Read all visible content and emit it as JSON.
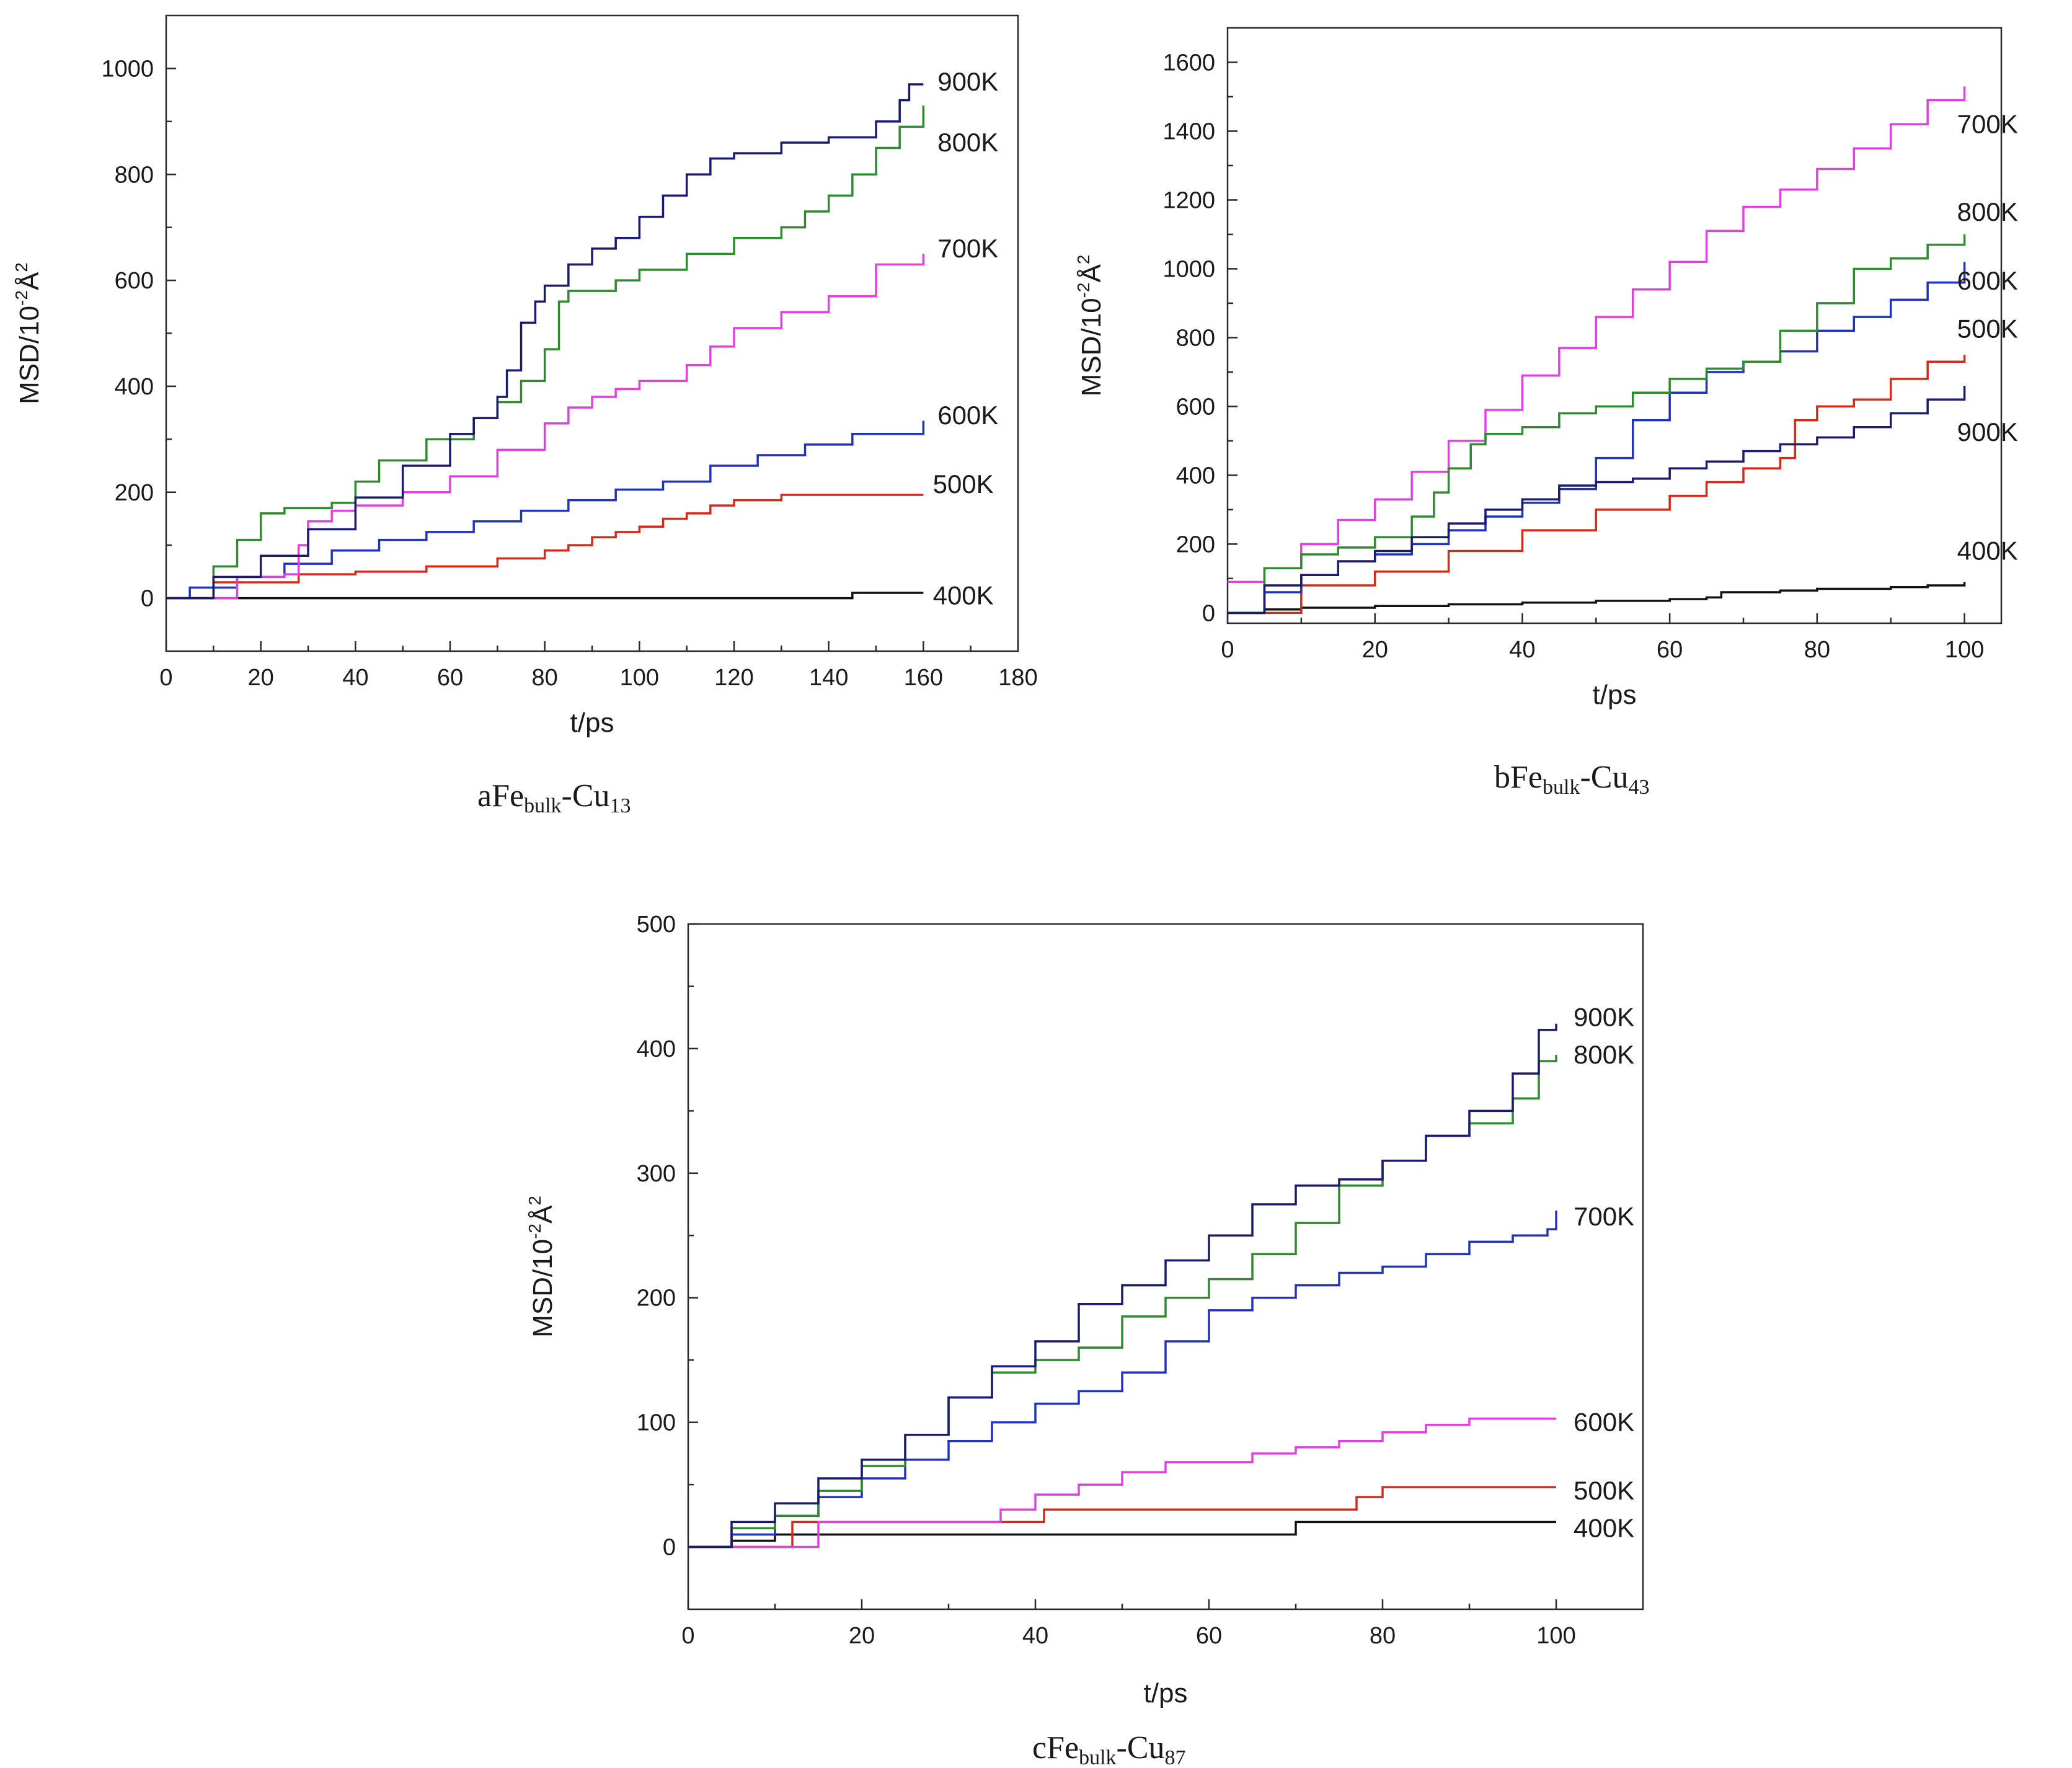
{
  "figure": {
    "colors": {
      "K900": "#1a1a6e",
      "K800": "#2e8b2e",
      "K700": "#e040e0",
      "K600": "#2233bb",
      "K500": "#d42a1a",
      "K400": "#111111"
    }
  },
  "chart_data": [
    {
      "id": "a",
      "type": "line",
      "caption": {
        "letter": "a",
        "base": "Fe",
        "sub1": "bulk",
        "mid": "-Cu",
        "sub2": "13"
      },
      "xlabel": "t/ps",
      "ylabel": "MSD/10",
      "ylabel_exp": "-2",
      "ylabel_unit": "Å",
      "ylabel_unit_exp": "2",
      "xlim": [
        0,
        180
      ],
      "ylim": [
        -100,
        1100
      ],
      "xticks": [
        0,
        20,
        40,
        60,
        80,
        100,
        120,
        140,
        160,
        180
      ],
      "yticks": [
        0,
        200,
        400,
        600,
        800,
        1000
      ],
      "series": [
        {
          "name": "400K",
          "color": "#111111",
          "x": [
            0,
            144,
            145,
            160
          ],
          "y": [
            0,
            0,
            10,
            10
          ]
        },
        {
          "name": "500K",
          "color": "#d42a1a",
          "x": [
            0,
            10,
            28,
            40,
            55,
            70,
            80,
            85,
            90,
            95,
            100,
            105,
            110,
            115,
            120,
            130,
            140,
            160
          ],
          "y": [
            0,
            30,
            45,
            50,
            60,
            75,
            90,
            100,
            115,
            125,
            135,
            150,
            160,
            175,
            185,
            195,
            195,
            195
          ]
        },
        {
          "name": "600K",
          "color": "#2233bb",
          "x": [
            0,
            5,
            15,
            25,
            35,
            45,
            55,
            65,
            75,
            85,
            95,
            105,
            115,
            125,
            135,
            145,
            160
          ],
          "y": [
            0,
            20,
            40,
            65,
            90,
            110,
            125,
            145,
            165,
            185,
            205,
            220,
            250,
            270,
            290,
            310,
            335
          ]
        },
        {
          "name": "700K",
          "color": "#e040e0",
          "x": [
            0,
            15,
            25,
            28,
            30,
            35,
            40,
            50,
            60,
            70,
            80,
            85,
            90,
            95,
            100,
            110,
            115,
            120,
            130,
            140,
            150,
            160
          ],
          "y": [
            0,
            40,
            45,
            100,
            145,
            165,
            175,
            200,
            230,
            280,
            330,
            360,
            380,
            395,
            410,
            440,
            475,
            510,
            540,
            570,
            630,
            650
          ]
        },
        {
          "name": "800K",
          "color": "#2e8b2e",
          "x": [
            0,
            10,
            15,
            20,
            25,
            35,
            40,
            45,
            55,
            65,
            70,
            75,
            80,
            83,
            85,
            95,
            100,
            110,
            120,
            125,
            130,
            135,
            140,
            145,
            150,
            155,
            160
          ],
          "y": [
            0,
            60,
            110,
            160,
            170,
            180,
            220,
            260,
            300,
            340,
            370,
            410,
            470,
            560,
            580,
            600,
            620,
            650,
            680,
            680,
            700,
            730,
            760,
            800,
            850,
            890,
            930
          ]
        },
        {
          "name": "900K",
          "color": "#1a1a6e",
          "x": [
            0,
            10,
            20,
            30,
            40,
            50,
            60,
            65,
            70,
            72,
            75,
            78,
            80,
            85,
            90,
            95,
            100,
            105,
            110,
            115,
            120,
            130,
            140,
            150,
            155,
            157,
            160
          ],
          "y": [
            0,
            40,
            80,
            130,
            190,
            250,
            310,
            340,
            380,
            430,
            520,
            560,
            590,
            630,
            660,
            680,
            720,
            760,
            800,
            830,
            840,
            860,
            870,
            900,
            940,
            970,
            970
          ]
        }
      ],
      "labels": [
        {
          "text": "900K",
          "x": 163,
          "y": 975
        },
        {
          "text": "800K",
          "x": 163,
          "y": 860
        },
        {
          "text": "700K",
          "x": 163,
          "y": 660
        },
        {
          "text": "600K",
          "x": 163,
          "y": 345
        },
        {
          "text": "500K",
          "x": 162,
          "y": 215
        },
        {
          "text": "400K",
          "x": 162,
          "y": 5
        }
      ]
    },
    {
      "id": "b",
      "type": "line",
      "caption": {
        "letter": "b",
        "base": "Fe",
        "sub1": "bulk",
        "mid": "-Cu",
        "sub2": "43"
      },
      "xlabel": "t/ps",
      "ylabel": "MSD/10",
      "ylabel_exp": "-2",
      "ylabel_unit": "Å",
      "ylabel_unit_exp": "2",
      "xlim": [
        0,
        105
      ],
      "ylim": [
        -30,
        1700
      ],
      "xticks": [
        0,
        20,
        40,
        60,
        80,
        100
      ],
      "yticks": [
        0,
        200,
        400,
        600,
        800,
        1000,
        1200,
        1400,
        1600
      ],
      "series": [
        {
          "name": "400K",
          "color": "#111111",
          "x": [
            0,
            5,
            10,
            20,
            30,
            40,
            50,
            60,
            65,
            67,
            70,
            75,
            80,
            85,
            90,
            95,
            100
          ],
          "y": [
            0,
            10,
            15,
            20,
            25,
            30,
            35,
            40,
            45,
            60,
            60,
            65,
            70,
            70,
            75,
            80,
            90
          ]
        },
        {
          "name": "500K",
          "color": "#d42a1a",
          "x": [
            0,
            10,
            20,
            30,
            40,
            50,
            60,
            65,
            70,
            75,
            77,
            80,
            85,
            90,
            95,
            100
          ],
          "y": [
            0,
            80,
            120,
            180,
            240,
            300,
            340,
            380,
            420,
            450,
            560,
            600,
            620,
            680,
            730,
            750
          ]
        },
        {
          "name": "600K",
          "color": "#2233bb",
          "x": [
            0,
            5,
            10,
            15,
            20,
            25,
            30,
            35,
            40,
            45,
            50,
            55,
            60,
            65,
            70,
            75,
            80,
            85,
            90,
            95,
            100
          ],
          "y": [
            0,
            60,
            110,
            150,
            170,
            200,
            240,
            280,
            320,
            360,
            450,
            560,
            640,
            700,
            730,
            760,
            820,
            860,
            910,
            960,
            1020
          ]
        },
        {
          "name": "700K",
          "color": "#e040e0",
          "x": [
            0,
            5,
            10,
            15,
            20,
            25,
            30,
            35,
            40,
            45,
            50,
            55,
            60,
            65,
            70,
            75,
            80,
            85,
            90,
            95,
            100
          ],
          "y": [
            90,
            130,
            200,
            270,
            330,
            410,
            500,
            590,
            690,
            770,
            860,
            940,
            1020,
            1110,
            1180,
            1230,
            1290,
            1350,
            1420,
            1490,
            1530
          ]
        },
        {
          "name": "800K",
          "color": "#2e8b2e",
          "x": [
            0,
            5,
            10,
            15,
            20,
            25,
            28,
            30,
            33,
            35,
            40,
            45,
            50,
            55,
            60,
            65,
            70,
            75,
            80,
            85,
            90,
            95,
            100
          ],
          "y": [
            0,
            130,
            170,
            190,
            220,
            280,
            350,
            420,
            490,
            520,
            540,
            580,
            600,
            640,
            680,
            710,
            730,
            820,
            900,
            1000,
            1030,
            1070,
            1100
          ]
        },
        {
          "name": "900K",
          "color": "#1a1a6e",
          "x": [
            0,
            5,
            10,
            15,
            20,
            25,
            30,
            35,
            40,
            45,
            50,
            55,
            60,
            65,
            70,
            75,
            80,
            85,
            90,
            95,
            100
          ],
          "y": [
            0,
            80,
            110,
            150,
            180,
            220,
            260,
            300,
            330,
            370,
            380,
            390,
            420,
            440,
            470,
            490,
            510,
            540,
            580,
            620,
            660
          ]
        }
      ],
      "labels": [
        {
          "text": "700K",
          "x": 99,
          "y": 1420
        },
        {
          "text": "800K",
          "x": 99,
          "y": 1165
        },
        {
          "text": "600K",
          "x": 99,
          "y": 965
        },
        {
          "text": "500K",
          "x": 99,
          "y": 825
        },
        {
          "text": "900K",
          "x": 99,
          "y": 525
        },
        {
          "text": "400K",
          "x": 99,
          "y": 180
        }
      ]
    },
    {
      "id": "c",
      "type": "line",
      "caption": {
        "letter": "c",
        "base": "Fe",
        "sub1": "bulk",
        "mid": "-Cu",
        "sub2": "87"
      },
      "xlabel": "t/ps",
      "ylabel": "MSD/10",
      "ylabel_exp": "-2",
      "ylabel_unit": "Å",
      "ylabel_unit_exp": "2",
      "xlim": [
        0,
        110
      ],
      "ylim": [
        -50,
        500
      ],
      "xticks": [
        0,
        20,
        40,
        60,
        80,
        100
      ],
      "yticks": [
        0,
        100,
        200,
        300,
        400,
        500
      ],
      "series": [
        {
          "name": "400K",
          "color": "#111111",
          "x": [
            0,
            5,
            10,
            69,
            70,
            100
          ],
          "y": [
            0,
            5,
            10,
            10,
            20,
            20
          ]
        },
        {
          "name": "500K",
          "color": "#d42a1a",
          "x": [
            0,
            11,
            12,
            40,
            41,
            76,
            77,
            79,
            80,
            100
          ],
          "y": [
            0,
            0,
            20,
            20,
            30,
            30,
            40,
            40,
            48,
            48
          ]
        },
        {
          "name": "600K",
          "color": "#e040e0",
          "x": [
            0,
            14,
            15,
            35,
            36,
            40,
            45,
            50,
            55,
            65,
            70,
            75,
            80,
            85,
            90,
            100
          ],
          "y": [
            0,
            0,
            20,
            20,
            30,
            42,
            50,
            60,
            68,
            75,
            80,
            85,
            92,
            98,
            103,
            103
          ]
        },
        {
          "name": "700K",
          "color": "#2233bb",
          "x": [
            0,
            5,
            10,
            15,
            20,
            25,
            30,
            35,
            40,
            45,
            50,
            55,
            60,
            65,
            70,
            75,
            80,
            85,
            90,
            95,
            99,
            100
          ],
          "y": [
            0,
            10,
            25,
            40,
            55,
            70,
            85,
            100,
            115,
            125,
            140,
            165,
            190,
            200,
            210,
            220,
            225,
            235,
            245,
            250,
            255,
            270
          ]
        },
        {
          "name": "800K",
          "color": "#2e8b2e",
          "x": [
            0,
            5,
            10,
            15,
            20,
            25,
            30,
            35,
            40,
            45,
            50,
            55,
            60,
            65,
            70,
            75,
            80,
            85,
            90,
            95,
            98,
            100
          ],
          "y": [
            0,
            15,
            25,
            45,
            65,
            90,
            120,
            140,
            150,
            160,
            185,
            200,
            215,
            235,
            260,
            290,
            310,
            330,
            340,
            360,
            390,
            395
          ]
        },
        {
          "name": "900K",
          "color": "#1a1a6e",
          "x": [
            0,
            5,
            10,
            15,
            20,
            25,
            30,
            35,
            40,
            45,
            50,
            55,
            60,
            65,
            70,
            75,
            80,
            85,
            90,
            95,
            98,
            100
          ],
          "y": [
            0,
            20,
            35,
            55,
            70,
            90,
            120,
            145,
            165,
            195,
            210,
            230,
            250,
            275,
            290,
            295,
            310,
            330,
            350,
            380,
            415,
            420
          ]
        }
      ],
      "labels": [
        {
          "text": "900K",
          "x": 102,
          "y": 425
        },
        {
          "text": "800K",
          "x": 102,
          "y": 395
        },
        {
          "text": "700K",
          "x": 102,
          "y": 265
        },
        {
          "text": "600K",
          "x": 102,
          "y": 100
        },
        {
          "text": "500K",
          "x": 102,
          "y": 45
        },
        {
          "text": "400K",
          "x": 102,
          "y": 15
        }
      ]
    }
  ]
}
